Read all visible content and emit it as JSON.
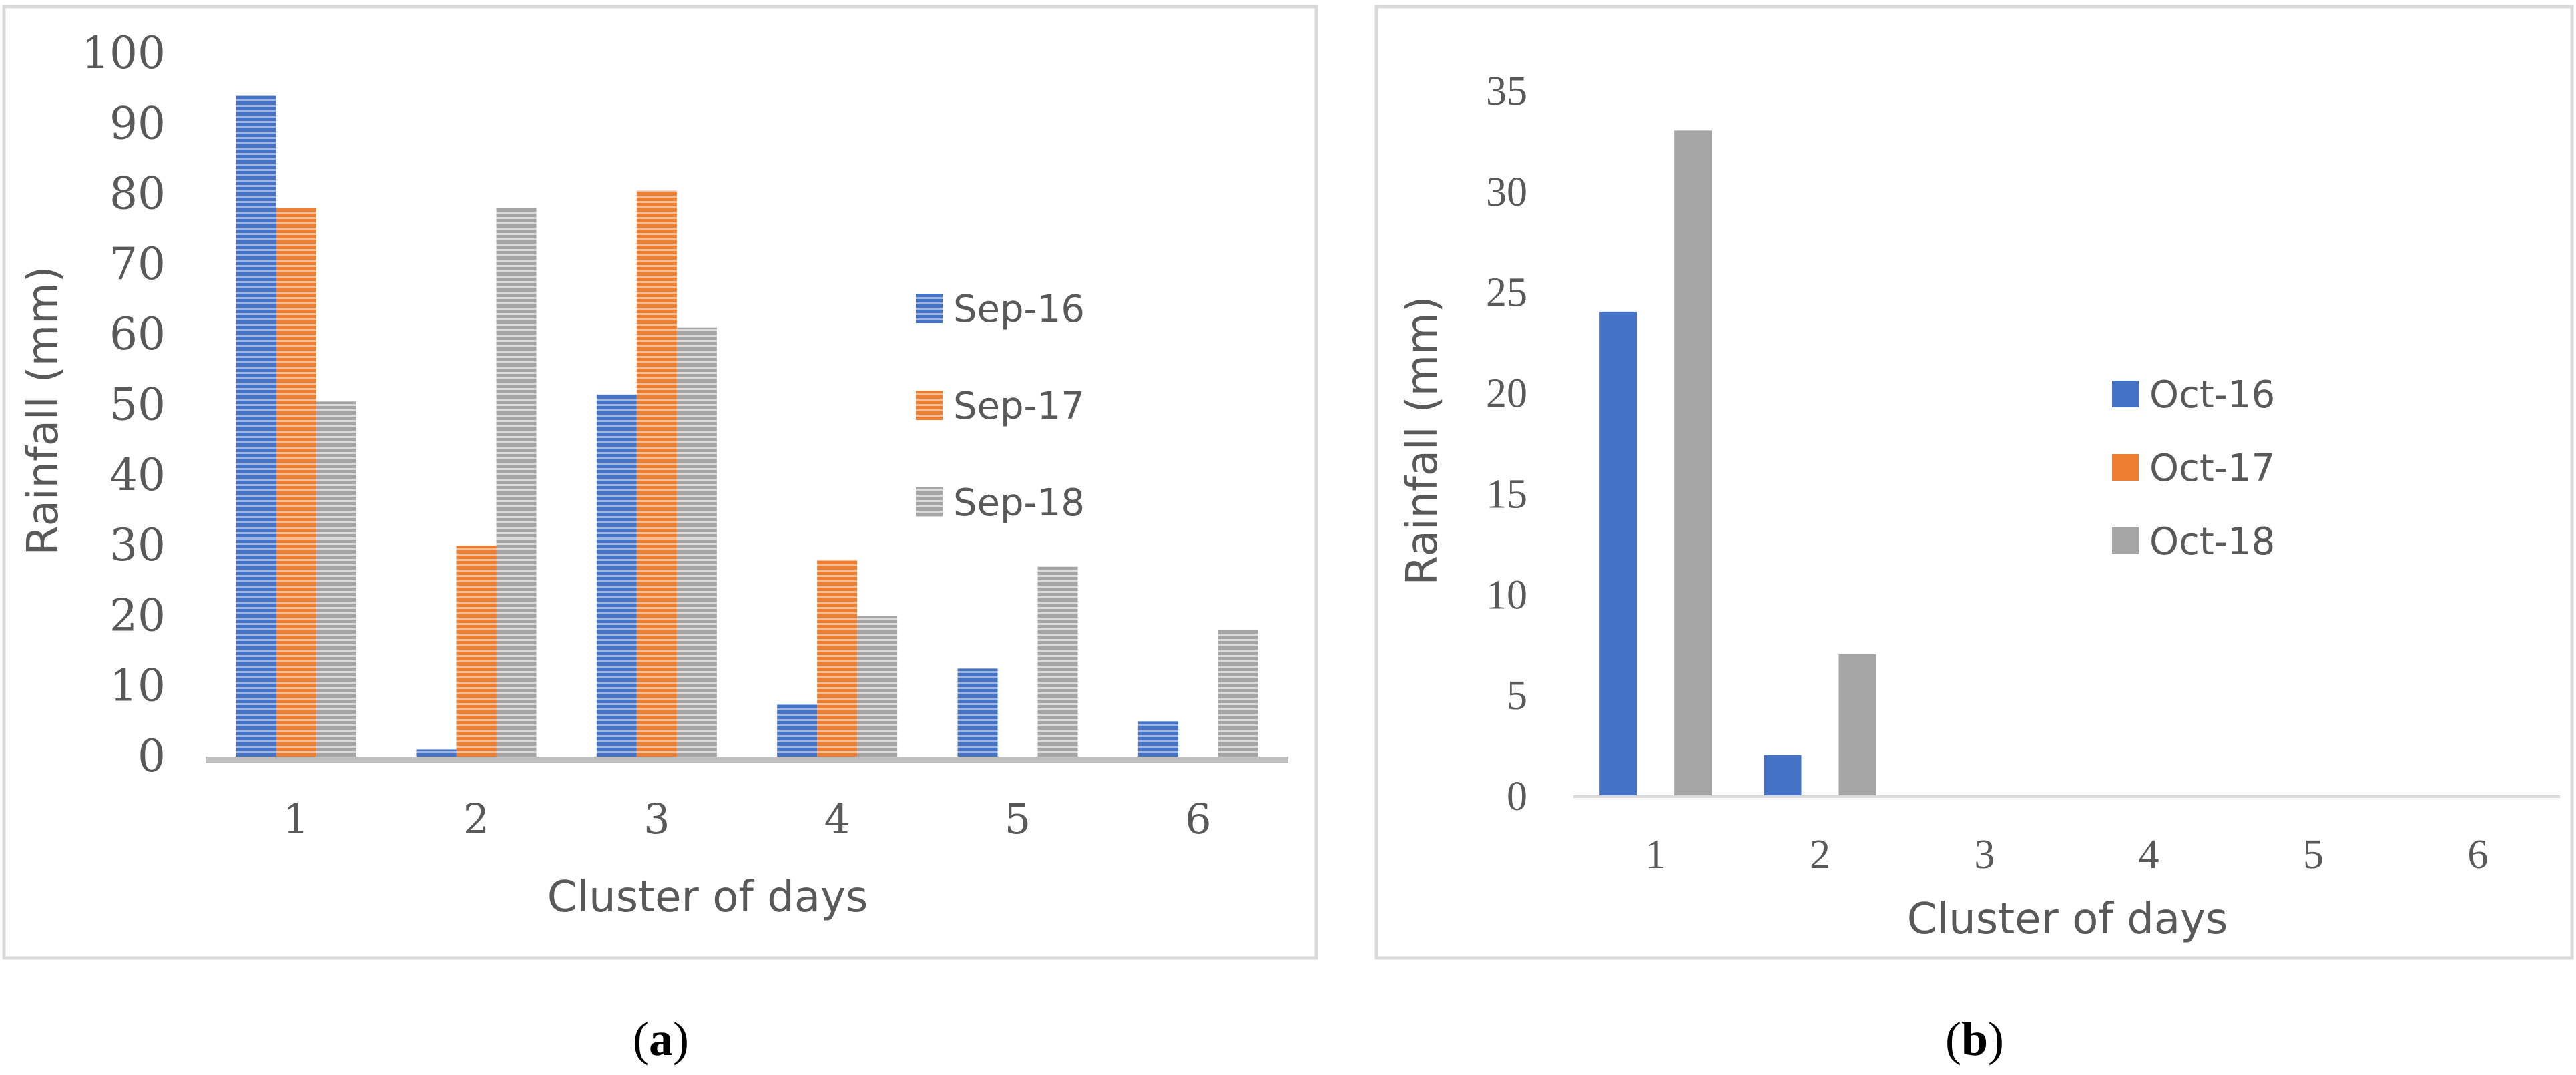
{
  "chart_data": [
    {
      "type": "bar",
      "panel": "a",
      "caption": {
        "open": "(",
        "letter": "a",
        "close": ")"
      },
      "title": "",
      "xlabel": "Cluster of days",
      "ylabel": "Rainfall (mm)",
      "ylim": [
        0,
        100
      ],
      "yticks": [
        "0",
        "10",
        "20",
        "30",
        "40",
        "50",
        "60",
        "70",
        "80",
        "90",
        "100"
      ],
      "categories": [
        "1",
        "2",
        "3",
        "4",
        "5",
        "6"
      ],
      "legend_position": "right",
      "pattern": "horizontal-stripes",
      "series": [
        {
          "name": "Sep-16",
          "color": "#4472C4",
          "values": [
            94,
            1,
            51.5,
            7.5,
            12.5,
            5
          ]
        },
        {
          "name": "Sep-17",
          "color": "#ED7D31",
          "values": [
            78,
            30,
            80.5,
            28,
            0,
            0
          ]
        },
        {
          "name": "Sep-18",
          "color": "#A5A5A5",
          "values": [
            50.5,
            78,
            61,
            20,
            27,
            18
          ]
        }
      ]
    },
    {
      "type": "bar",
      "panel": "b",
      "caption": {
        "open": "(",
        "letter": "b",
        "close": ")"
      },
      "title": "",
      "xlabel": "Cluster of days",
      "ylabel": "Rainfall (mm)",
      "ylim": [
        0,
        35
      ],
      "yticks": [
        "0",
        "5",
        "10",
        "15",
        "20",
        "25",
        "30",
        "35"
      ],
      "categories": [
        "1",
        "2",
        "3",
        "4",
        "5",
        "6"
      ],
      "legend_position": "right",
      "pattern": "solid",
      "series": [
        {
          "name": "Oct-16",
          "color": "#4472C4",
          "values": [
            24,
            2,
            0,
            0,
            0,
            0
          ]
        },
        {
          "name": "Oct-17",
          "color": "#ED7D31",
          "values": [
            0,
            0,
            0,
            0,
            0,
            0
          ]
        },
        {
          "name": "Oct-18",
          "color": "#A5A5A5",
          "values": [
            33,
            7,
            0,
            0,
            0,
            0
          ]
        }
      ]
    }
  ]
}
